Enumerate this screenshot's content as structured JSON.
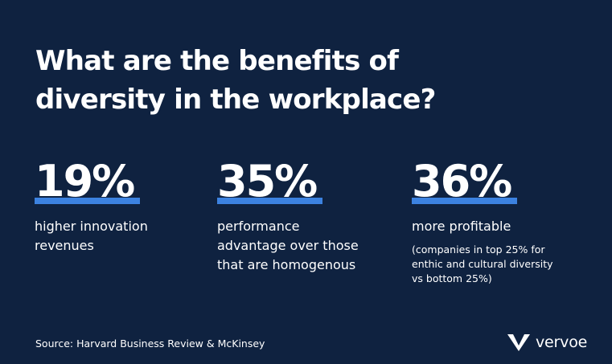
{
  "title": "What are the benefits of\ndiversity in the workplace?",
  "stats": [
    {
      "value": "19%",
      "label": "higher innovation\nrevenues"
    },
    {
      "value": "35%",
      "label": "performance\nadvantage over those\nthat are homogenous"
    },
    {
      "value": "36%",
      "label": "more profitable",
      "note": "(companies in top 25% for\nenthic and cultural diversity\nvs bottom 25%)"
    }
  ],
  "source": "Source: Harvard Business Review & McKinsey",
  "brand": {
    "name": "vervoe",
    "icon": "vervoe-v-logo-icon"
  },
  "colors": {
    "background": "#0f2240",
    "accent": "#3c82e0",
    "text": "#ffffff"
  }
}
